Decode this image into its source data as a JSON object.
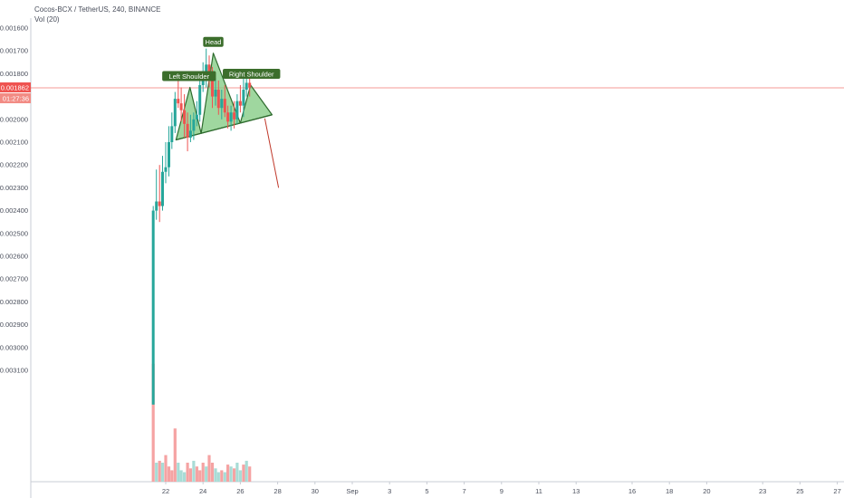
{
  "header": {
    "symbol_line": "Cocos-BCX / TetherUS, 240, BINANCE",
    "indicator_line": "Vol (20)"
  },
  "colors": {
    "up": "#26a69a",
    "down": "#ef5350",
    "vol_up": "#a8dcd6",
    "vol_down": "#f5a3a3",
    "pattern_fill": "#7fc97f",
    "pattern_stroke": "#2e6b2e",
    "label_bg": "#3c6e2c",
    "price_line": "#ef5350",
    "arrow": "#c0392b"
  },
  "price_badge": {
    "price": "0.001862",
    "countdown": "01:27:36"
  },
  "chart_data": {
    "type": "candlestick",
    "title": "Cocos-BCX / TetherUS, 240, BINANCE",
    "y_axis": {
      "scale": "inverted",
      "range": [
        0.00162,
        0.00325
      ],
      "ticks": [
        "0.001600",
        "0.001700",
        "0.001800",
        "0.001900",
        "0.002000",
        "0.002100",
        "0.002200",
        "0.002300",
        "0.002400",
        "0.002500",
        "0.002600",
        "0.002700",
        "0.002800",
        "0.002900",
        "0.003000",
        "0.003100"
      ],
      "tick_values": [
        0.0016,
        0.0017,
        0.0018,
        0.0019,
        0.002,
        0.0021,
        0.0022,
        0.0023,
        0.0024,
        0.0025,
        0.0026,
        0.0027,
        0.0028,
        0.0029,
        0.003,
        0.0031
      ]
    },
    "x_axis": {
      "range_days": [
        20.3,
        48.5
      ],
      "ticks": [
        {
          "label": "22",
          "day": 22
        },
        {
          "label": "24",
          "day": 24
        },
        {
          "label": "26",
          "day": 26
        },
        {
          "label": "28",
          "day": 28
        },
        {
          "label": "30",
          "day": 30
        },
        {
          "label": "Sep",
          "day": 32
        },
        {
          "label": "3",
          "day": 34
        },
        {
          "label": "5",
          "day": 36
        },
        {
          "label": "7",
          "day": 38
        },
        {
          "label": "9",
          "day": 40
        },
        {
          "label": "11",
          "day": 42
        },
        {
          "label": "13",
          "day": 44
        },
        {
          "label": "16",
          "day": 47
        },
        {
          "label": "18",
          "day": 49
        },
        {
          "label": "20",
          "day": 51
        },
        {
          "label": "23",
          "day": 54
        },
        {
          "label": "25",
          "day": 56
        },
        {
          "label": "27",
          "day": 58
        }
      ]
    },
    "candles": [
      {
        "t": 21.33,
        "o": 0.00325,
        "h": 0.00325,
        "l": 0.00238,
        "c": 0.0024
      },
      {
        "t": 21.5,
        "o": 0.0024,
        "h": 0.00244,
        "l": 0.00222,
        "c": 0.00236
      },
      {
        "t": 21.67,
        "o": 0.00236,
        "h": 0.00245,
        "l": 0.0022,
        "c": 0.00238
      },
      {
        "t": 21.83,
        "o": 0.00238,
        "h": 0.0024,
        "l": 0.00216,
        "c": 0.00223
      },
      {
        "t": 22.0,
        "o": 0.00223,
        "h": 0.00228,
        "l": 0.0021,
        "c": 0.00221
      },
      {
        "t": 22.17,
        "o": 0.00221,
        "h": 0.00225,
        "l": 0.00203,
        "c": 0.0021
      },
      {
        "t": 22.33,
        "o": 0.0021,
        "h": 0.00213,
        "l": 0.00197,
        "c": 0.00203
      },
      {
        "t": 22.5,
        "o": 0.00203,
        "h": 0.00206,
        "l": 0.00188,
        "c": 0.00191
      },
      {
        "t": 22.67,
        "o": 0.00191,
        "h": 0.00195,
        "l": 0.00183,
        "c": 0.00193
      },
      {
        "t": 22.83,
        "o": 0.00193,
        "h": 0.00201,
        "l": 0.00186,
        "c": 0.00196
      },
      {
        "t": 23.0,
        "o": 0.00196,
        "h": 0.00208,
        "l": 0.00189,
        "c": 0.00202
      },
      {
        "t": 23.17,
        "o": 0.00202,
        "h": 0.00214,
        "l": 0.00197,
        "c": 0.00208
      },
      {
        "t": 23.33,
        "o": 0.00208,
        "h": 0.0021,
        "l": 0.00198,
        "c": 0.00205
      },
      {
        "t": 23.5,
        "o": 0.00205,
        "h": 0.00209,
        "l": 0.00197,
        "c": 0.002
      },
      {
        "t": 23.67,
        "o": 0.002,
        "h": 0.00203,
        "l": 0.00192,
        "c": 0.00198
      },
      {
        "t": 23.83,
        "o": 0.00198,
        "h": 0.00201,
        "l": 0.00181,
        "c": 0.00185
      },
      {
        "t": 24.0,
        "o": 0.00185,
        "h": 0.00188,
        "l": 0.00175,
        "c": 0.00182
      },
      {
        "t": 24.17,
        "o": 0.00182,
        "h": 0.00186,
        "l": 0.00169,
        "c": 0.00176
      },
      {
        "t": 24.33,
        "o": 0.00176,
        "h": 0.00186,
        "l": 0.00172,
        "c": 0.00181
      },
      {
        "t": 24.5,
        "o": 0.00181,
        "h": 0.00195,
        "l": 0.00177,
        "c": 0.0019
      },
      {
        "t": 24.67,
        "o": 0.0019,
        "h": 0.00194,
        "l": 0.00182,
        "c": 0.00187
      },
      {
        "t": 24.83,
        "o": 0.00187,
        "h": 0.00198,
        "l": 0.00183,
        "c": 0.00195
      },
      {
        "t": 25.0,
        "o": 0.00195,
        "h": 0.002,
        "l": 0.00187,
        "c": 0.00191
      },
      {
        "t": 25.17,
        "o": 0.00191,
        "h": 0.00199,
        "l": 0.00185,
        "c": 0.00197
      },
      {
        "t": 25.33,
        "o": 0.00197,
        "h": 0.00204,
        "l": 0.00194,
        "c": 0.00201
      },
      {
        "t": 25.5,
        "o": 0.00201,
        "h": 0.00205,
        "l": 0.00194,
        "c": 0.00197
      },
      {
        "t": 25.67,
        "o": 0.00197,
        "h": 0.00204,
        "l": 0.00192,
        "c": 0.002
      },
      {
        "t": 25.83,
        "o": 0.002,
        "h": 0.00202,
        "l": 0.00189,
        "c": 0.00192
      },
      {
        "t": 26.0,
        "o": 0.00192,
        "h": 0.00197,
        "l": 0.00185,
        "c": 0.00194
      },
      {
        "t": 26.17,
        "o": 0.00194,
        "h": 0.00199,
        "l": 0.00182,
        "c": 0.00187
      },
      {
        "t": 26.33,
        "o": 0.00187,
        "h": 0.0019,
        "l": 0.00178,
        "c": 0.00184
      },
      {
        "t": 26.5,
        "o": 0.00184,
        "h": 0.0019,
        "l": 0.00181,
        "c": 0.00186
      }
    ],
    "volume": [
      0.62,
      0.1,
      0.11,
      0.1,
      0.14,
      0.08,
      0.06,
      0.28,
      0.1,
      0.06,
      0.05,
      0.1,
      0.07,
      0.11,
      0.08,
      0.06,
      0.1,
      0.08,
      0.14,
      0.1,
      0.07,
      0.05,
      0.06,
      0.05,
      0.09,
      0.08,
      0.07,
      0.1,
      0.06,
      0.09,
      0.11,
      0.08
    ],
    "volume_up": [
      false,
      true,
      false,
      true,
      false,
      false,
      false,
      false,
      true,
      true,
      true,
      false,
      false,
      true,
      false,
      false,
      false,
      true,
      false,
      false,
      true,
      true,
      false,
      true,
      false,
      true,
      false,
      true,
      true,
      false,
      true,
      false
    ],
    "pattern": {
      "name": "Head and Shoulders",
      "labels": [
        "Left Shoulder",
        "Head",
        "Right Shoulder"
      ],
      "neckline_start": {
        "day": 22.55,
        "price": 0.00209
      },
      "left_shoulder": {
        "day": 23.3,
        "price": 0.00186
      },
      "left_trough": {
        "day": 23.9,
        "price": 0.00207
      },
      "head": {
        "day": 24.55,
        "price": 0.00171
      },
      "right_trough": {
        "day": 26.0,
        "price": 0.002
      },
      "right_shoulder": {
        "day": 26.55,
        "price": 0.00185
      },
      "neckline_end": {
        "day": 27.7,
        "price": 0.00198
      },
      "projection_target": {
        "day": 28.05,
        "price": 0.0023
      }
    },
    "current_price": 0.001862
  }
}
